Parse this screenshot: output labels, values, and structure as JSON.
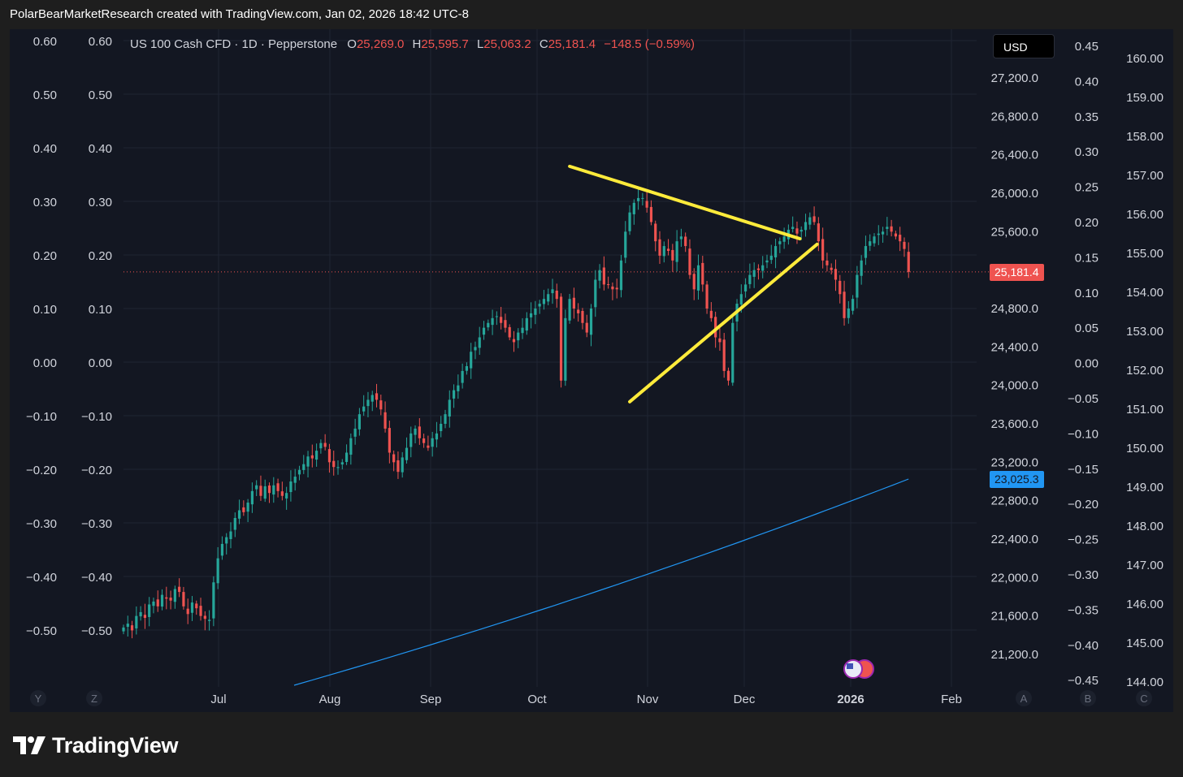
{
  "header": {
    "attribution": "PolarBearMarketResearch created with TradingView.com, Jan 02, 2026 18:42 UTC-8"
  },
  "legend": {
    "symbol": "US 100 Cash CFD · 1D · Pepperstone",
    "o_label": "O",
    "o_value": "25,269.0",
    "h_label": "H",
    "h_value": "25,595.7",
    "l_label": "L",
    "l_value": "25,063.2",
    "c_label": "C",
    "c_value": "25,181.4",
    "change": "−148.5 (−0.59%)"
  },
  "currency_button": "USD",
  "last_price_tag": "25,181.4",
  "ma_price_tag": "23,025.3",
  "footer": {
    "brand": "TradingView"
  },
  "colors": {
    "up": "#26a69a",
    "down": "#ef5350",
    "ma": "#2196f3",
    "trendline": "#ffeb3b",
    "background": "#131722"
  },
  "chart_data": {
    "type": "candlestick",
    "symbol": "US 100 Cash CFD",
    "interval": "1D",
    "y_axis_price": {
      "ticks": [
        "21,200.0",
        "21,600.0",
        "22,000.0",
        "22,400.0",
        "22,800.0",
        "23,200.0",
        "23,600.0",
        "24,000.0",
        "24,400.0",
        "24,800.0",
        "25,200.0",
        "25,600.0",
        "26,000.0",
        "26,400.0",
        "26,800.0",
        "27,200.0"
      ]
    },
    "y_axis_left1": {
      "ticks": [
        "0.60",
        "0.50",
        "0.40",
        "0.30",
        "0.20",
        "0.10",
        "0.00",
        "−0.10",
        "−0.20",
        "−0.30",
        "−0.40",
        "−0.50"
      ]
    },
    "y_axis_left2": {
      "ticks": [
        "0.60",
        "0.50",
        "0.40",
        "0.30",
        "0.20",
        "0.10",
        "0.00",
        "−0.10",
        "−0.20",
        "−0.30",
        "−0.40",
        "−0.50"
      ]
    },
    "y_axis_right2": {
      "ticks": [
        "0.45",
        "0.40",
        "0.35",
        "0.30",
        "0.25",
        "0.20",
        "0.15",
        "0.10",
        "0.05",
        "0.00",
        "−0.05",
        "−0.10",
        "−0.15",
        "−0.20",
        "−0.25",
        "−0.30",
        "−0.35",
        "−0.40",
        "−0.45"
      ]
    },
    "y_axis_right3": {
      "ticks": [
        "160.00",
        "159.00",
        "158.00",
        "157.00",
        "156.00",
        "155.00",
        "154.00",
        "153.00",
        "152.00",
        "151.00",
        "150.00",
        "149.00",
        "148.00",
        "147.00",
        "146.00",
        "145.00",
        "144.00"
      ]
    },
    "x_axis": {
      "months": [
        "Jul",
        "Aug",
        "Sep",
        "Oct",
        "Nov",
        "Dec",
        "2026",
        "Feb"
      ],
      "bold": "2026"
    },
    "axis_letters_left": [
      "Y",
      "Z"
    ],
    "axis_letters_right": [
      "A",
      "B",
      "C"
    ],
    "closes": [
      21480,
      21520,
      21450,
      21600,
      21640,
      21580,
      21720,
      21750,
      21700,
      21820,
      21780,
      21760,
      21880,
      21850,
      21700,
      21620,
      21740,
      21680,
      21600,
      21570,
      21560,
      21950,
      22200,
      22350,
      22420,
      22480,
      22620,
      22700,
      22680,
      22780,
      22900,
      22960,
      22850,
      22950,
      22880,
      22960,
      22900,
      22850,
      22880,
      23000,
      23050,
      23120,
      23180,
      23260,
      23240,
      23320,
      23400,
      23360,
      23200,
      23150,
      23150,
      23200,
      23300,
      23450,
      23550,
      23700,
      23780,
      23850,
      23900,
      23850,
      23750,
      23550,
      23300,
      23200,
      23100,
      23250,
      23350,
      23500,
      23550,
      23450,
      23400,
      23350,
      23450,
      23500,
      23600,
      23700,
      23850,
      23950,
      24000,
      24150,
      24200,
      24350,
      24400,
      24500,
      24600,
      24650,
      24700,
      24720,
      24650,
      24600,
      24500,
      24450,
      24550,
      24600,
      24700,
      24750,
      24800,
      24850,
      24900,
      24950,
      25000,
      24900,
      24050,
      24700,
      24900,
      24800,
      24750,
      24650,
      24550,
      24800,
      25100,
      25200,
      25050,
      25050,
      25000,
      25000,
      25300,
      25600,
      25800,
      25900,
      25950,
      25950,
      25850,
      25700,
      25500,
      25350,
      25450,
      25400,
      25300,
      25500,
      25550,
      25450,
      25150,
      25000,
      25250,
      25050,
      24800,
      24700,
      24500,
      24450,
      24150,
      24050,
      24650,
      24850,
      24950,
      25050,
      25150,
      25200,
      25200,
      25250,
      25300,
      25350,
      25450,
      25500,
      25550,
      25620,
      25650,
      25580,
      25620,
      25700,
      25750,
      25700,
      25500,
      25300,
      25250,
      25200,
      25100,
      24950,
      24700,
      24800,
      24900,
      25150,
      25300,
      25450,
      25500,
      25550,
      25580,
      25600,
      25650,
      25600,
      25550,
      25500,
      25420,
      25181.4
    ],
    "ma_period_note": "",
    "ma_endpoint": 23025.3,
    "last_close": 25181.4,
    "trendlines": [
      {
        "from_bar": 104,
        "from_price": 26280,
        "to_bar": 152,
        "to_price": 25560
      },
      {
        "from_bar": 118,
        "from_price": 23830,
        "to_bar": 156,
        "to_price": 25300
      }
    ],
    "grid": true,
    "legend_position": "top-left"
  }
}
